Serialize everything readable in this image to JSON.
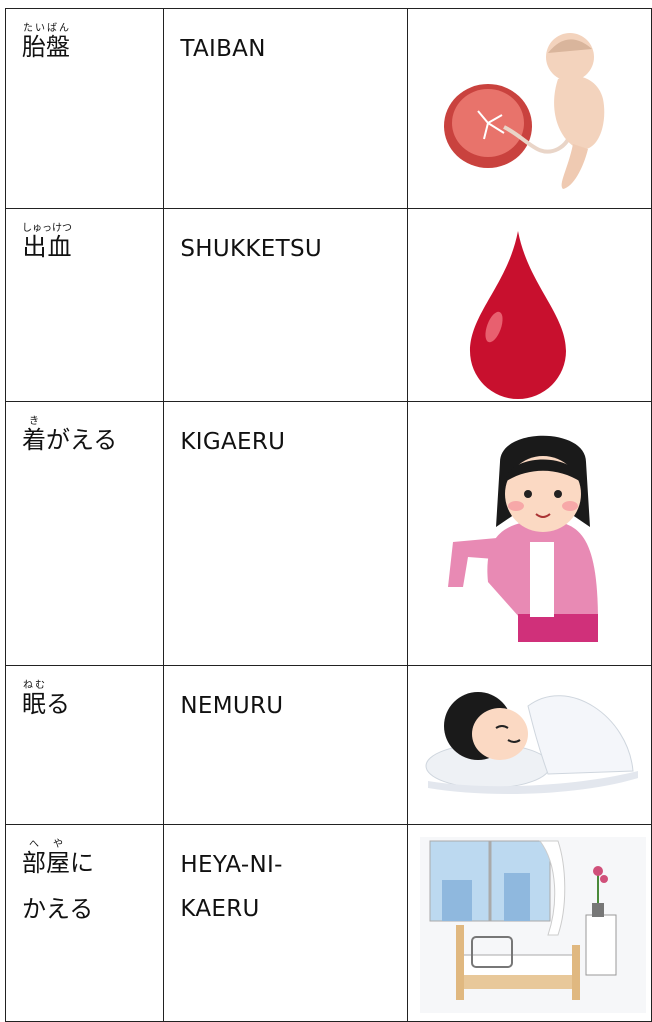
{
  "table": {
    "rows": [
      {
        "word": [
          [
            {
              "base": "胎盤",
              "ruby": "たいばん"
            }
          ]
        ],
        "romaji": [
          "TAIBAN"
        ]
      },
      {
        "word": [
          [
            {
              "base": "出血",
              "ruby": "しゅっけつ"
            }
          ]
        ],
        "romaji": [
          "SHUKKETSU"
        ]
      },
      {
        "word": [
          [
            {
              "base": "着",
              "ruby": "き"
            },
            {
              "text": "がえる"
            }
          ]
        ],
        "romaji": [
          "KIGAERU"
        ]
      },
      {
        "word": [
          [
            {
              "base": "眠",
              "ruby": "ねむ"
            },
            {
              "text": "る"
            }
          ]
        ],
        "romaji": [
          "NEMURU"
        ]
      },
      {
        "word": [
          [
            {
              "base": "部",
              "ruby": "へ"
            },
            {
              "base": "屋",
              "ruby": "や"
            },
            {
              "text": "に"
            }
          ],
          [
            {
              "text": "かえる"
            }
          ]
        ],
        "romaji": [
          "HEYA-NI-",
          "KAERU"
        ]
      }
    ]
  }
}
